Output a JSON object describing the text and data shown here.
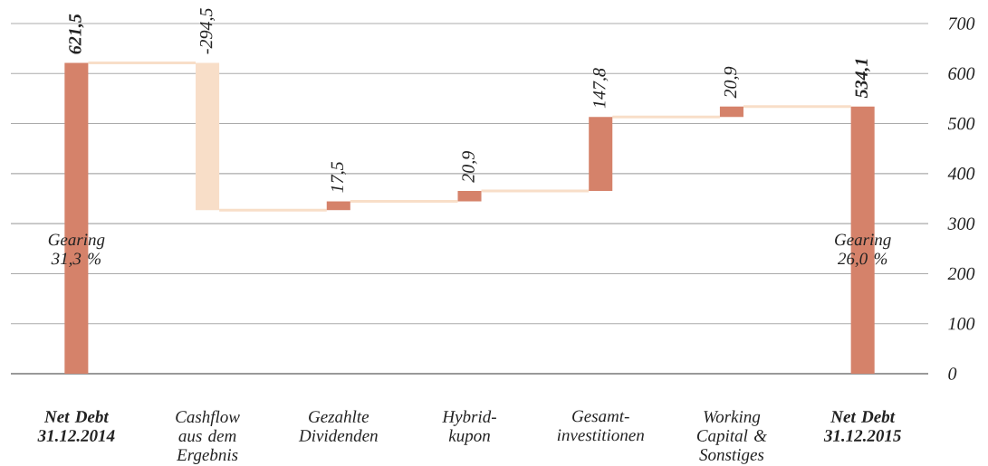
{
  "chart_data": {
    "type": "bar",
    "categories": [
      "Net Debt 31.12.2014",
      "Cashflow aus dem Ergebnis",
      "Gezahlte Dividenden",
      "Hybrid-kupon",
      "Gesamt-investitionen",
      "Working Capital & Sonstiges",
      "Net Debt 31.12.2015"
    ],
    "values": [
      621.5,
      -294.5,
      17.5,
      20.9,
      147.8,
      20.9,
      534.1
    ],
    "base": [
      0,
      621.5,
      327,
      344.5,
      365.4,
      513.2,
      0
    ],
    "colors": [
      "#d5826a",
      "#f8dec8",
      "#d5826a",
      "#d5826a",
      "#d5826a",
      "#d5826a",
      "#d5826a"
    ],
    "value_labels": [
      "621,5",
      "-294,5",
      "17,5",
      "20,9",
      "147,8",
      "20,9",
      "534,1"
    ],
    "ylim": [
      0,
      700
    ],
    "yticks": [
      0,
      100,
      200,
      300,
      400,
      500,
      600,
      700
    ],
    "grid": "y",
    "annotations": [
      "Gearing 31,3 %",
      "Gearing 26,0 %"
    ]
  }
}
